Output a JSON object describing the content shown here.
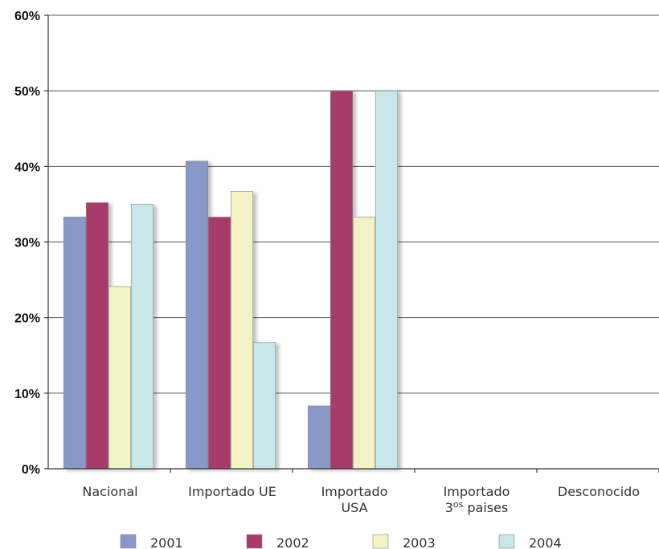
{
  "chart_data": {
    "type": "bar",
    "categories": [
      [
        "Nacional"
      ],
      [
        "Importado UE"
      ],
      [
        "Importado",
        "USA"
      ],
      [
        "Importado",
        "3os paises"
      ],
      [
        "Desconocido"
      ]
    ],
    "series": [
      {
        "name": "2001",
        "color": "#8898c9",
        "values": [
          33.3,
          40.7,
          8.3,
          0,
          0
        ]
      },
      {
        "name": "2002",
        "color": "#a93a6a",
        "values": [
          35.2,
          33.3,
          50,
          0,
          0
        ]
      },
      {
        "name": "2003",
        "color": "#f2f2c4",
        "values": [
          24.1,
          36.7,
          33.3,
          0,
          0
        ]
      },
      {
        "name": "2004",
        "color": "#c9e6ea",
        "values": [
          35.0,
          16.7,
          50,
          0,
          0
        ]
      }
    ],
    "y_ticks": [
      "0%",
      "10%",
      "20%",
      "30%",
      "40%",
      "50%",
      "60%"
    ],
    "ylim": [
      0,
      60
    ],
    "grid": true,
    "legend": "bottom"
  }
}
